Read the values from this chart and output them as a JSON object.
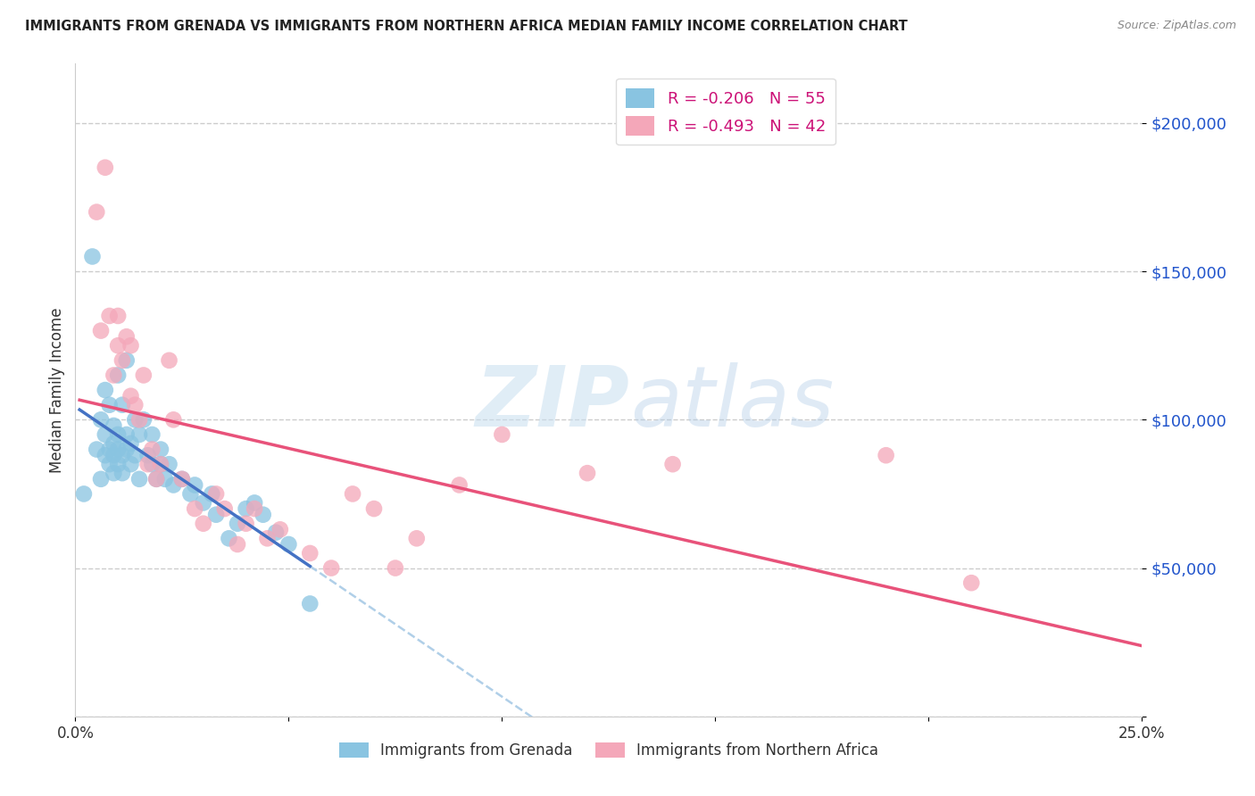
{
  "title": "IMMIGRANTS FROM GRENADA VS IMMIGRANTS FROM NORTHERN AFRICA MEDIAN FAMILY INCOME CORRELATION CHART",
  "source": "Source: ZipAtlas.com",
  "ylabel": "Median Family Income",
  "xlim": [
    0,
    0.25
  ],
  "ylim": [
    0,
    220000
  ],
  "R1": -0.206,
  "N1": 55,
  "R2": -0.493,
  "N2": 42,
  "color1": "#89c4e1",
  "color2": "#f4a7b9",
  "trend1_color": "#4472c4",
  "trend2_color": "#e8527a",
  "dash_color": "#b0cfe8",
  "watermark_color": "#d5e8f5",
  "series1_label": "Immigrants from Grenada",
  "series2_label": "Immigrants from Northern Africa",
  "background_color": "#ffffff",
  "series1_x": [
    0.002,
    0.004,
    0.005,
    0.006,
    0.006,
    0.007,
    0.007,
    0.007,
    0.008,
    0.008,
    0.008,
    0.009,
    0.009,
    0.009,
    0.009,
    0.01,
    0.01,
    0.01,
    0.01,
    0.011,
    0.011,
    0.011,
    0.012,
    0.012,
    0.012,
    0.013,
    0.013,
    0.014,
    0.014,
    0.015,
    0.015,
    0.016,
    0.017,
    0.018,
    0.018,
    0.019,
    0.02,
    0.02,
    0.021,
    0.022,
    0.023,
    0.025,
    0.027,
    0.028,
    0.03,
    0.032,
    0.033,
    0.036,
    0.038,
    0.04,
    0.042,
    0.044,
    0.047,
    0.05,
    0.055
  ],
  "series1_y": [
    75000,
    155000,
    90000,
    80000,
    100000,
    88000,
    95000,
    110000,
    85000,
    90000,
    105000,
    92000,
    98000,
    82000,
    88000,
    90000,
    95000,
    85000,
    115000,
    82000,
    88000,
    105000,
    90000,
    95000,
    120000,
    85000,
    92000,
    88000,
    100000,
    80000,
    95000,
    100000,
    88000,
    85000,
    95000,
    80000,
    85000,
    90000,
    80000,
    85000,
    78000,
    80000,
    75000,
    78000,
    72000,
    75000,
    68000,
    60000,
    65000,
    70000,
    72000,
    68000,
    62000,
    58000,
    38000
  ],
  "series2_x": [
    0.005,
    0.006,
    0.007,
    0.008,
    0.009,
    0.01,
    0.01,
    0.011,
    0.012,
    0.013,
    0.013,
    0.014,
    0.015,
    0.016,
    0.017,
    0.018,
    0.019,
    0.02,
    0.022,
    0.023,
    0.025,
    0.028,
    0.03,
    0.033,
    0.035,
    0.038,
    0.04,
    0.042,
    0.045,
    0.048,
    0.055,
    0.06,
    0.065,
    0.07,
    0.075,
    0.08,
    0.09,
    0.1,
    0.12,
    0.14,
    0.19,
    0.21
  ],
  "series2_y": [
    170000,
    130000,
    185000,
    135000,
    115000,
    125000,
    135000,
    120000,
    128000,
    108000,
    125000,
    105000,
    100000,
    115000,
    85000,
    90000,
    80000,
    85000,
    120000,
    100000,
    80000,
    70000,
    65000,
    75000,
    70000,
    58000,
    65000,
    70000,
    60000,
    63000,
    55000,
    50000,
    75000,
    70000,
    50000,
    60000,
    78000,
    95000,
    82000,
    85000,
    88000,
    45000
  ]
}
